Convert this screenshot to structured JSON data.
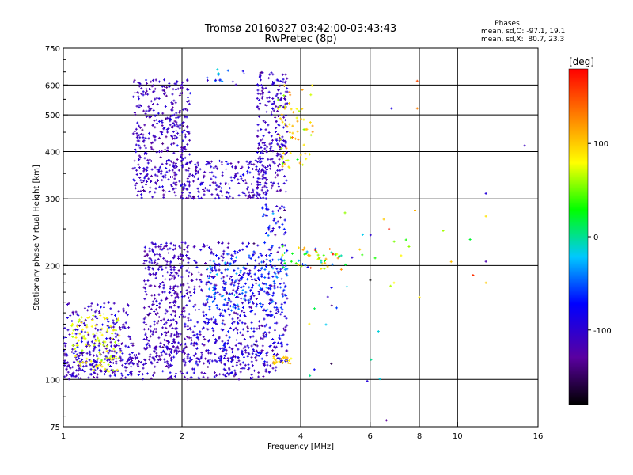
{
  "chart_data": {
    "type": "scatter",
    "title": "Tromsø 20160327 03:42:00-03:43:43",
    "subtitle": "RwPretec (8p)",
    "xlabel": "Frequency [MHz]",
    "ylabel": "Stationary phase Virtual Height [km]",
    "x_scale": "log",
    "y_scale": "log",
    "xlim": [
      1,
      16
    ],
    "ylim": [
      75,
      750
    ],
    "x_ticks": [
      1,
      2,
      4,
      6,
      8,
      10,
      16
    ],
    "y_ticks": [
      75,
      100,
      200,
      300,
      400,
      500,
      600,
      750
    ],
    "x_gridlines": [
      2,
      4,
      6,
      8,
      10
    ],
    "y_gridlines": [
      100,
      200,
      300,
      400,
      500,
      600
    ],
    "grid": true,
    "stats": {
      "heading": "Phases",
      "line_o": "mean, sd,O: -97.1, 19.1",
      "line_x": "mean, sd,X:  80.7, 23.3"
    },
    "colorbar": {
      "label": "[deg]",
      "range": [
        -180,
        180
      ],
      "ticks": [
        -100,
        0,
        100
      ]
    },
    "clusters": [
      {
        "fmin": 1.5,
        "fmax": 2.1,
        "hmin": 300,
        "hmax": 620,
        "n": 420,
        "phase": -110,
        "sd": 12
      },
      {
        "fmin": 2.0,
        "fmax": 3.3,
        "hmin": 300,
        "hmax": 380,
        "n": 200,
        "phase": -105,
        "sd": 14
      },
      {
        "fmin": 3.1,
        "fmax": 3.7,
        "hmin": 310,
        "hmax": 650,
        "n": 240,
        "phase": -110,
        "sd": 12
      },
      {
        "fmin": 3.5,
        "fmax": 4.3,
        "hmin": 360,
        "hmax": 600,
        "n": 70,
        "phase": 95,
        "sd": 22
      },
      {
        "fmin": 2.3,
        "fmax": 2.9,
        "hmin": 600,
        "hmax": 660,
        "n": 15,
        "phase": -60,
        "sd": 30
      },
      {
        "fmin": 1.0,
        "fmax": 3.5,
        "hmin": 100,
        "hmax": 125,
        "n": 320,
        "phase": -110,
        "sd": 14
      },
      {
        "fmin": 1.0,
        "fmax": 1.5,
        "hmin": 100,
        "hmax": 160,
        "n": 240,
        "phase": -105,
        "sd": 15
      },
      {
        "fmin": 1.05,
        "fmax": 1.4,
        "hmin": 105,
        "hmax": 150,
        "n": 110,
        "phase": 75,
        "sd": 10
      },
      {
        "fmin": 1.6,
        "fmax": 2.1,
        "hmin": 110,
        "hmax": 230,
        "n": 380,
        "phase": -112,
        "sd": 12
      },
      {
        "fmin": 2.1,
        "fmax": 3.7,
        "hmin": 110,
        "hmax": 230,
        "n": 520,
        "phase": -100,
        "sd": 18
      },
      {
        "fmin": 2.3,
        "fmax": 3.7,
        "hmin": 150,
        "hmax": 215,
        "n": 150,
        "phase": -55,
        "sd": 18
      },
      {
        "fmin": 3.2,
        "fmax": 3.7,
        "hmin": 240,
        "hmax": 290,
        "n": 40,
        "phase": -85,
        "sd": 25
      },
      {
        "fmin": 3.4,
        "fmax": 3.8,
        "hmin": 110,
        "hmax": 115,
        "n": 25,
        "phase": 95,
        "sd": 12
      },
      {
        "fmin": 3.6,
        "fmax": 5.2,
        "hmin": 195,
        "hmax": 225,
        "n": 60,
        "phase": 50,
        "sd": 70
      },
      {
        "fmin": 4.0,
        "fmax": 6.5,
        "hmin": 100,
        "hmax": 300,
        "n": 20,
        "phase": -40,
        "sd": 80
      },
      {
        "fmin": 6.0,
        "fmax": 12.0,
        "hmin": 170,
        "hmax": 280,
        "n": 10,
        "phase": 90,
        "sd": 40
      }
    ],
    "outliers": [
      {
        "x": 6.6,
        "y": 78,
        "phase": -130
      },
      {
        "x": 7.9,
        "y": 615,
        "phase": 150
      },
      {
        "x": 7.9,
        "y": 520,
        "phase": 130
      },
      {
        "x": 6.8,
        "y": 520,
        "phase": -90
      },
      {
        "x": 14.8,
        "y": 415,
        "phase": -110
      },
      {
        "x": 11.8,
        "y": 310,
        "phase": -95
      },
      {
        "x": 11.8,
        "y": 270,
        "phase": 90
      },
      {
        "x": 11.8,
        "y": 205,
        "phase": -120
      },
      {
        "x": 11.8,
        "y": 180,
        "phase": 100
      },
      {
        "x": 5.9,
        "y": 99,
        "phase": -95
      },
      {
        "x": 7.8,
        "y": 280,
        "phase": 110
      },
      {
        "x": 6.7,
        "y": 250,
        "phase": 170
      },
      {
        "x": 6.5,
        "y": 265,
        "phase": 100
      },
      {
        "x": 5.4,
        "y": 210,
        "phase": -100
      },
      {
        "x": 6.9,
        "y": 180,
        "phase": 80
      },
      {
        "x": 8.0,
        "y": 165,
        "phase": 90
      }
    ]
  }
}
